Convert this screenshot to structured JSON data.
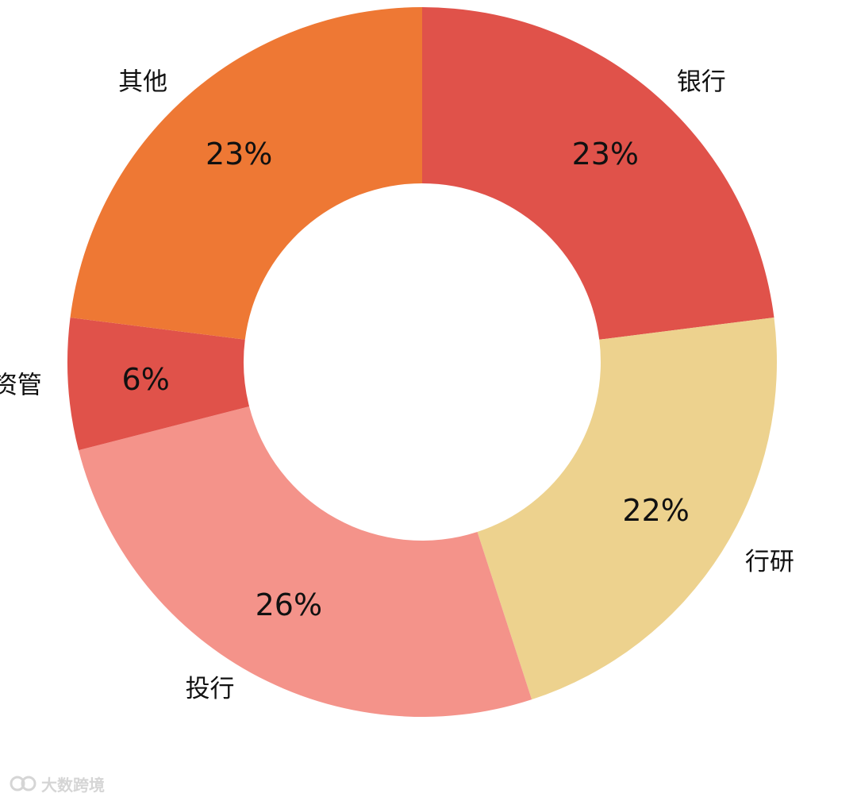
{
  "chart_data": {
    "type": "pie",
    "donut": true,
    "title": "",
    "start": "12 o'clock, clockwise",
    "slices": [
      {
        "label": "银行",
        "value": 23,
        "value_label": "23%",
        "color": "#e0524a"
      },
      {
        "label": "行研",
        "value": 22,
        "value_label": "22%",
        "color": "#edd28e"
      },
      {
        "label": "投行",
        "value": 26,
        "value_label": "26%",
        "color": "#f4938a"
      },
      {
        "label": "资管",
        "value": 6,
        "value_label": "6%",
        "color": "#e0524a"
      },
      {
        "label": "其他",
        "value": 23,
        "value_label": "23%",
        "color": "#ee7834"
      }
    ]
  },
  "watermark": {
    "text": "大数跨境"
  }
}
